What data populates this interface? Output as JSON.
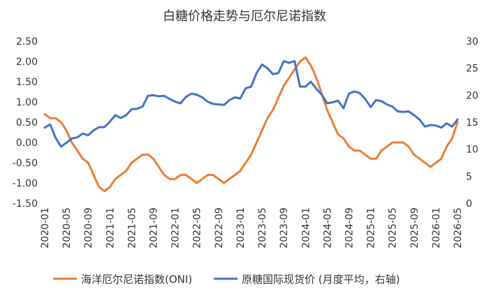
{
  "chart_data": {
    "type": "line",
    "title": "白糖价格走势与厄尔尼诺指数",
    "x_ticks": [
      "2020-01",
      "2020-05",
      "2020-09",
      "2021-01",
      "2021-05",
      "2021-09",
      "2022-01",
      "2022-05",
      "2022-09",
      "2023-01",
      "2023-05",
      "2023-09",
      "2024-01",
      "2024-05",
      "2024-09",
      "2025-01",
      "2025-05",
      "2025-09",
      "2026-01",
      "2026-05"
    ],
    "y_left_ticks": [
      "2.50",
      "2.00",
      "1.50",
      "1.00",
      "0.50",
      "0.00",
      "-0.50",
      "-1.00",
      "-1.50"
    ],
    "y_right_ticks": [
      "30",
      "25",
      "20",
      "15",
      "10",
      "5",
      "0"
    ],
    "y_left_range": [
      -1.5,
      2.5
    ],
    "y_right_range": [
      0,
      30
    ],
    "series": [
      {
        "name": "海洋厄尔尼诺指数(ONI)",
        "axis": "left",
        "color": "#ED7D31",
        "x": [
          "2020-01",
          "2020-02",
          "2020-03",
          "2020-04",
          "2020-05",
          "2020-06",
          "2020-07",
          "2020-08",
          "2020-09",
          "2020-10",
          "2020-11",
          "2020-12",
          "2021-01",
          "2021-02",
          "2021-03",
          "2021-04",
          "2021-05",
          "2021-06",
          "2021-07",
          "2021-08",
          "2021-09",
          "2021-10",
          "2021-11",
          "2021-12",
          "2022-01",
          "2022-02",
          "2022-03",
          "2022-04",
          "2022-05",
          "2022-06",
          "2022-07",
          "2022-08",
          "2022-09",
          "2022-10",
          "2022-11",
          "2022-12",
          "2023-01",
          "2023-02",
          "2023-03",
          "2023-04",
          "2023-05",
          "2023-06",
          "2023-07",
          "2023-08",
          "2023-09",
          "2023-10",
          "2023-11",
          "2023-12",
          "2024-01",
          "2024-02",
          "2024-03",
          "2024-04",
          "2024-05",
          "2024-06",
          "2024-07",
          "2024-08",
          "2024-09",
          "2024-10",
          "2024-11",
          "2024-12",
          "2025-01",
          "2025-02",
          "2025-03",
          "2025-04",
          "2025-05",
          "2025-06",
          "2025-07",
          "2025-08",
          "2025-09",
          "2025-10",
          "2025-11",
          "2025-12",
          "2026-01",
          "2026-02",
          "2026-03",
          "2026-04",
          "2026-05"
        ],
        "values": [
          0.7,
          0.6,
          0.6,
          0.5,
          0.3,
          0.0,
          -0.2,
          -0.4,
          -0.5,
          -0.8,
          -1.1,
          -1.2,
          -1.1,
          -0.9,
          -0.8,
          -0.7,
          -0.5,
          -0.4,
          -0.3,
          -0.3,
          -0.4,
          -0.6,
          -0.8,
          -0.9,
          -0.9,
          -0.8,
          -0.8,
          -0.9,
          -1.0,
          -0.9,
          -0.8,
          -0.8,
          -0.9,
          -1.0,
          -0.9,
          -0.8,
          -0.7,
          -0.5,
          -0.3,
          0.0,
          0.3,
          0.6,
          0.8,
          1.1,
          1.4,
          1.6,
          1.8,
          2.0,
          2.1,
          1.9,
          1.6,
          1.2,
          0.8,
          0.5,
          0.2,
          0.1,
          -0.1,
          -0.2,
          -0.2,
          -0.3,
          -0.4,
          -0.4,
          -0.2,
          -0.1,
          0.0,
          0.0,
          0.0,
          -0.1,
          -0.3,
          -0.4,
          -0.5,
          -0.6,
          -0.5,
          -0.4,
          -0.1,
          0.1,
          0.5
        ]
      },
      {
        "name": "原糖国际现货价 (月度平均，右轴)",
        "axis": "right",
        "color": "#4472C4",
        "x": [
          "2020-01",
          "2020-02",
          "2020-03",
          "2020-04",
          "2020-05",
          "2020-06",
          "2020-07",
          "2020-08",
          "2020-09",
          "2020-10",
          "2020-11",
          "2020-12",
          "2021-01",
          "2021-02",
          "2021-03",
          "2021-04",
          "2021-05",
          "2021-06",
          "2021-07",
          "2021-08",
          "2021-09",
          "2021-10",
          "2021-11",
          "2021-12",
          "2022-01",
          "2022-02",
          "2022-03",
          "2022-04",
          "2022-05",
          "2022-06",
          "2022-07",
          "2022-08",
          "2022-09",
          "2022-10",
          "2022-11",
          "2022-12",
          "2023-01",
          "2023-02",
          "2023-03",
          "2023-04",
          "2023-05",
          "2023-06",
          "2023-07",
          "2023-08",
          "2023-09",
          "2023-10",
          "2023-11",
          "2023-12",
          "2024-01",
          "2024-02",
          "2024-03",
          "2024-04",
          "2024-05",
          "2024-06",
          "2024-07",
          "2024-08",
          "2024-09",
          "2024-10",
          "2024-11",
          "2024-12",
          "2025-01",
          "2025-02",
          "2025-03",
          "2025-04",
          "2025-05",
          "2025-06",
          "2025-07",
          "2025-08",
          "2025-09",
          "2025-10",
          "2025-11",
          "2025-12",
          "2026-01",
          "2026-02",
          "2026-03",
          "2026-04",
          "2026-05"
        ],
        "values": [
          14.0,
          14.6,
          12.1,
          10.5,
          11.2,
          12.0,
          12.2,
          12.9,
          12.6,
          13.5,
          14.1,
          14.1,
          15.1,
          16.3,
          15.8,
          16.3,
          17.4,
          17.5,
          17.9,
          19.9,
          20.0,
          19.8,
          19.9,
          19.3,
          18.8,
          18.5,
          19.7,
          20.3,
          20.1,
          19.6,
          18.8,
          18.4,
          18.3,
          18.2,
          19.1,
          19.6,
          19.4,
          21.3,
          21.6,
          24.1,
          25.7,
          25.0,
          23.9,
          24.1,
          26.3,
          26.0,
          26.3,
          21.6,
          21.6,
          22.5,
          21.2,
          20.1,
          18.5,
          18.7,
          19.0,
          17.6,
          20.3,
          20.7,
          20.4,
          19.3,
          17.8,
          19.1,
          18.9,
          18.3,
          17.9,
          17.0,
          16.9,
          17.0,
          16.3,
          15.5,
          14.2,
          14.5,
          14.4,
          14.0,
          14.8,
          14.2,
          15.5
        ]
      }
    ]
  }
}
